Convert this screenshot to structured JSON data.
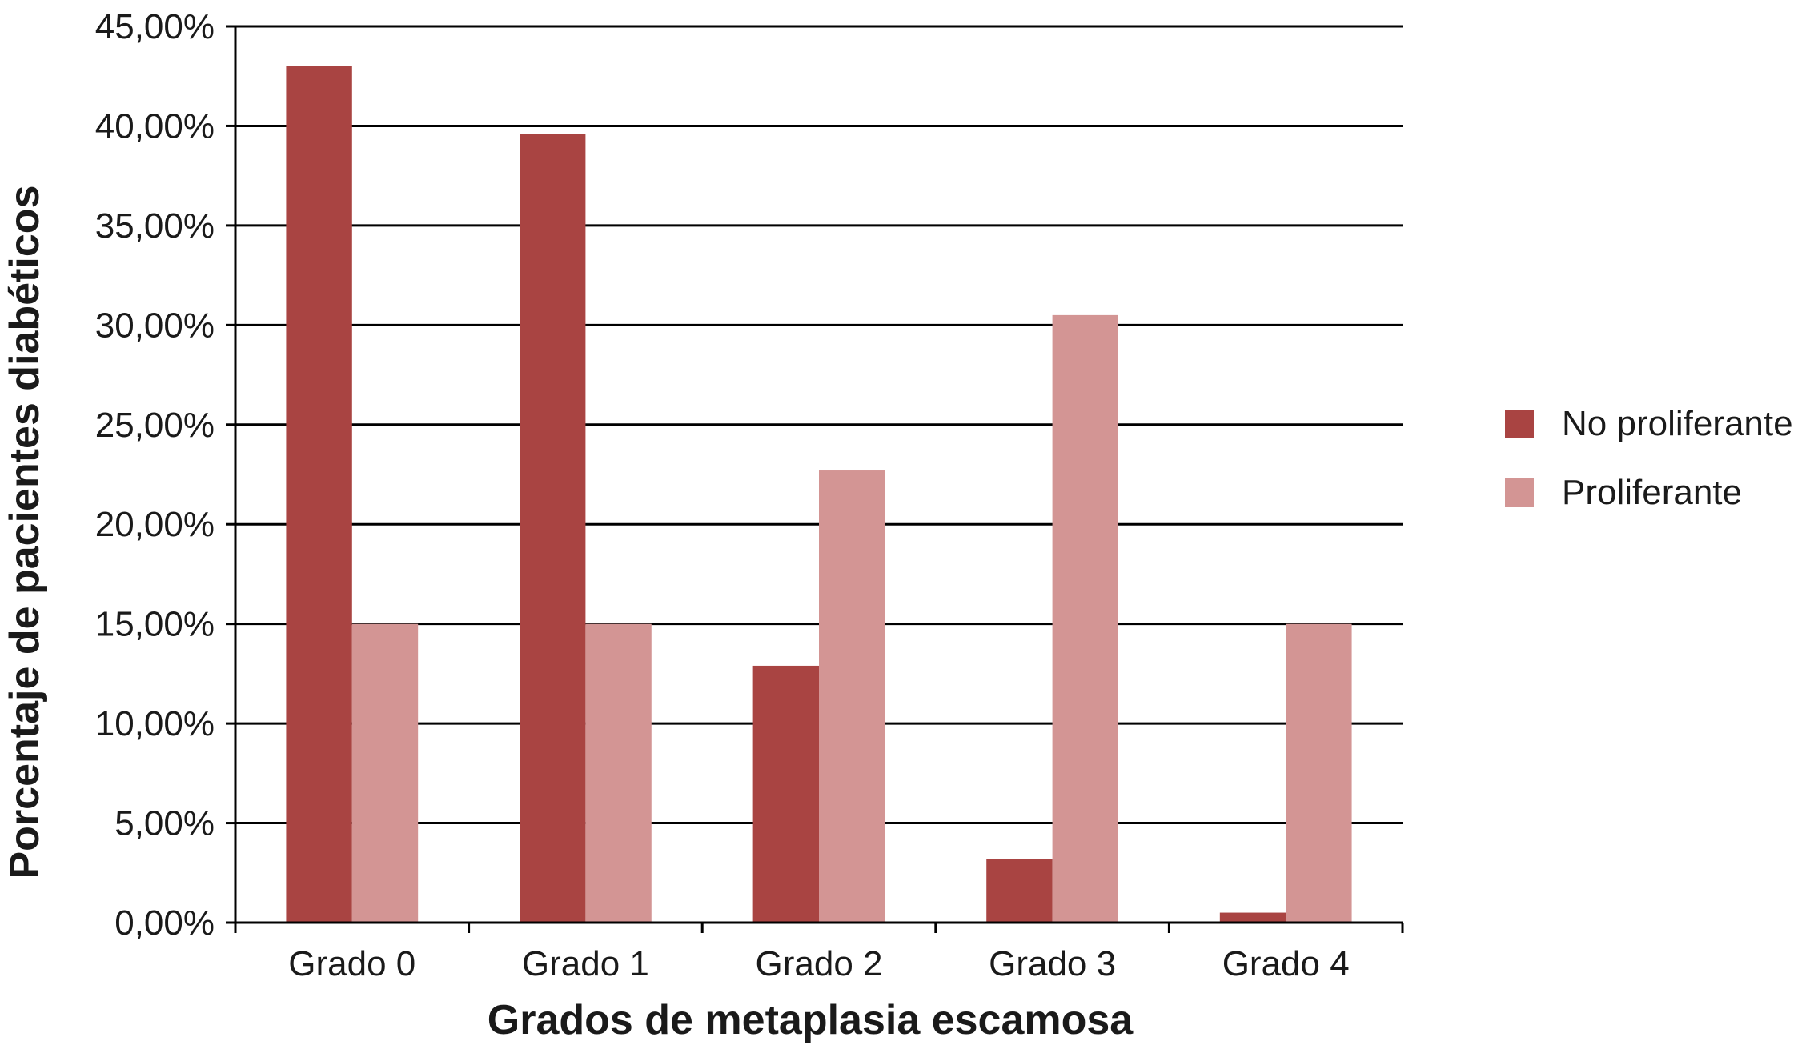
{
  "chart_data": {
    "type": "bar",
    "title": "",
    "xlabel": "Grados de metaplasia escamosa",
    "ylabel": "Porcentaje de pacientes diabéticos",
    "categories": [
      "Grado 0",
      "Grado 1",
      "Grado 2",
      "Grado 3",
      "Grado 4"
    ],
    "series": [
      {
        "name": "No proliferante",
        "color": "#a94442",
        "values": [
          43.0,
          39.6,
          12.9,
          3.2,
          0.5
        ]
      },
      {
        "name": "Proliferante",
        "color": "#d39594",
        "values": [
          15.0,
          15.0,
          22.7,
          30.5,
          15.0
        ]
      }
    ],
    "ylim": [
      0,
      45
    ],
    "yticks": [
      0,
      5,
      10,
      15,
      20,
      25,
      30,
      35,
      40,
      45
    ],
    "ytick_labels": [
      "0,00%",
      "5,00%",
      "10,00%",
      "15,00%",
      "20,00%",
      "25,00%",
      "30,00%",
      "35,00%",
      "40,00%",
      "45,00%"
    ],
    "grid": true,
    "legend_position": "right"
  }
}
